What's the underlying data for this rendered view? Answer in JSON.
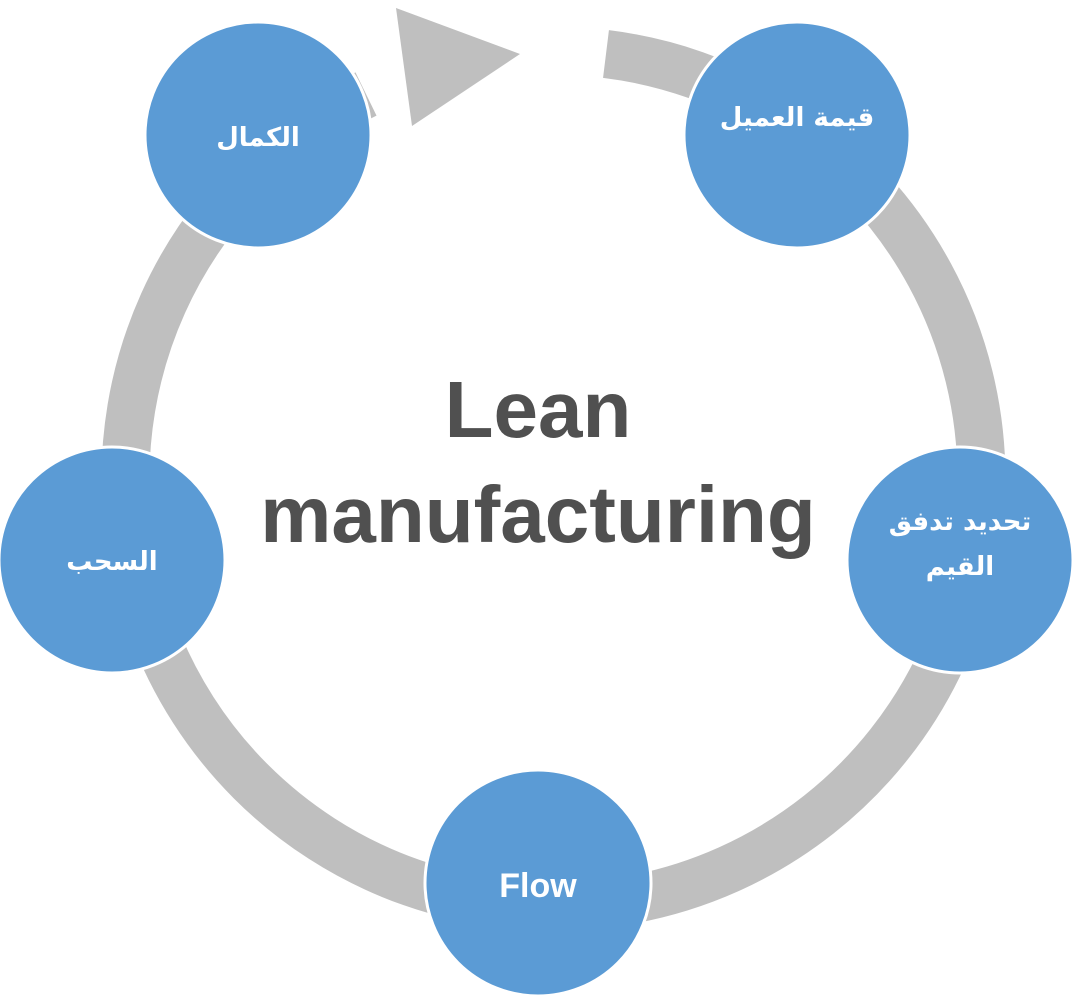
{
  "diagram": {
    "center_title_lines": [
      "Lean",
      "manufacturing"
    ],
    "colors": {
      "node_fill": "#5b9bd5",
      "node_stroke": "#ffffff",
      "ring": "#bfbfbf",
      "center_text": "#505050",
      "node_text": "#ffffff"
    },
    "nodes": [
      {
        "label_lines": [
          "قيمة العميل"
        ]
      },
      {
        "label_lines": [
          "تحديد تدفق",
          "القيم"
        ]
      },
      {
        "label_lines": [
          "Flow"
        ]
      },
      {
        "label_lines": [
          "السحب"
        ]
      },
      {
        "label_lines": [
          "الكمال"
        ]
      }
    ]
  }
}
